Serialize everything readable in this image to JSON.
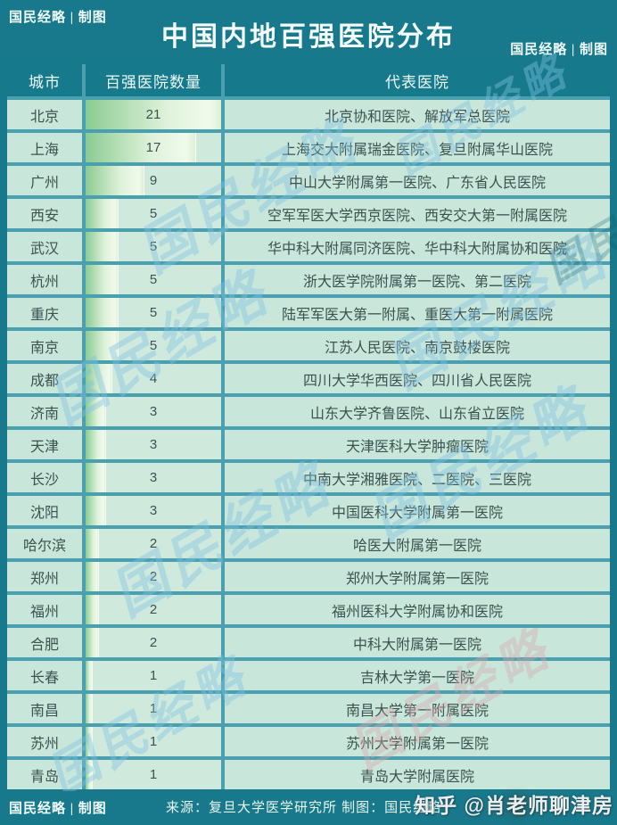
{
  "header": {
    "title": "中国内地百强医院分布",
    "badge_left": "国民经略 | 制图",
    "badge_right": "国民经略 | 制图"
  },
  "table": {
    "columns": [
      "城市",
      "百强医院数量",
      "代表医院"
    ],
    "max_value": 21,
    "rows": [
      {
        "city": "北京",
        "count": 21,
        "hospitals": "北京协和医院、解放军总医院"
      },
      {
        "city": "上海",
        "count": 17,
        "hospitals": "上海交大附属瑞金医院、复旦附属华山医院"
      },
      {
        "city": "广州",
        "count": 9,
        "hospitals": "中山大学附属第一医院、广东省人民医院"
      },
      {
        "city": "西安",
        "count": 5,
        "hospitals": "空军军医大学西京医院、西安交大第一附属医院"
      },
      {
        "city": "武汉",
        "count": 5,
        "hospitals": "华中科大附属同济医院、华中科大附属协和医院"
      },
      {
        "city": "杭州",
        "count": 5,
        "hospitals": "浙大医学院附属第一医院、第二医院"
      },
      {
        "city": "重庆",
        "count": 5,
        "hospitals": "陆军军医大第一附属、重医大第一附属医院"
      },
      {
        "city": "南京",
        "count": 5,
        "hospitals": "江苏人民医院、南京鼓楼医院"
      },
      {
        "city": "成都",
        "count": 4,
        "hospitals": "四川大学华西医院、四川省人民医院"
      },
      {
        "city": "济南",
        "count": 3,
        "hospitals": "山东大学齐鲁医院、山东省立医院"
      },
      {
        "city": "天津",
        "count": 3,
        "hospitals": "天津医科大学肿瘤医院"
      },
      {
        "city": "长沙",
        "count": 3,
        "hospitals": "中南大学湘雅医院、二医院、三医院"
      },
      {
        "city": "沈阳",
        "count": 3,
        "hospitals": "中国医科大学附属第一医院"
      },
      {
        "city": "哈尔滨",
        "count": 2,
        "hospitals": "哈医大附属第一医院"
      },
      {
        "city": "郑州",
        "count": 2,
        "hospitals": "郑州大学附属第一医院"
      },
      {
        "city": "福州",
        "count": 2,
        "hospitals": "福州医科大学附属协和医院"
      },
      {
        "city": "合肥",
        "count": 2,
        "hospitals": "中科大附属第一医院"
      },
      {
        "city": "长春",
        "count": 1,
        "hospitals": "吉林大学第一医院"
      },
      {
        "city": "南昌",
        "count": 1,
        "hospitals": "南昌大学第一附属医院"
      },
      {
        "city": "苏州",
        "count": 1,
        "hospitals": "苏州大学附属第一医院"
      },
      {
        "city": "青岛",
        "count": 1,
        "hospitals": "青岛大学附属医院"
      }
    ]
  },
  "footer": {
    "badge": "国民经略 | 制图",
    "source": "来源：复旦大学医学研究所  制图：国民经略"
  },
  "watermarks": {
    "brand_text": "国民经略",
    "zhihu": "知乎 @肖老师聊津房"
  },
  "colors": {
    "background_teal": "#17798b",
    "gap_teal": "#4aa0ae",
    "row_mint": "#c8e7da",
    "bar_green": "#8bcb93",
    "text_dark": "#3d5151",
    "text_white": "#f4fdfc",
    "watermark_blue": "#7ec2e2"
  },
  "chart_data": {
    "type": "bar",
    "title": "中国内地百强医院分布",
    "categories": [
      "北京",
      "上海",
      "广州",
      "西安",
      "武汉",
      "杭州",
      "重庆",
      "南京",
      "成都",
      "济南",
      "天津",
      "长沙",
      "沈阳",
      "哈尔滨",
      "郑州",
      "福州",
      "合肥",
      "长春",
      "南昌",
      "苏州",
      "青岛"
    ],
    "values": [
      21,
      17,
      9,
      5,
      5,
      5,
      5,
      5,
      4,
      3,
      3,
      3,
      3,
      2,
      2,
      2,
      2,
      1,
      1,
      1,
      1
    ],
    "annotations": [
      "北京协和医院、解放军总医院",
      "上海交大附属瑞金医院、复旦附属华山医院",
      "中山大学附属第一医院、广东省人民医院",
      "空军军医大学西京医院、西安交大第一附属医院",
      "华中科大附属同济医院、华中科大附属协和医院",
      "浙大医学院附属第一医院、第二医院",
      "陆军军医大第一附属、重医大第一附属医院",
      "江苏人民医院、南京鼓楼医院",
      "四川大学华西医院、四川省人民医院",
      "山东大学齐鲁医院、山东省立医院",
      "天津医科大学肿瘤医院",
      "中南大学湘雅医院、二医院、三医院",
      "中国医科大学附属第一医院",
      "哈医大附属第一医院",
      "郑州大学附属第一医院",
      "福州医科大学附属协和医院",
      "中科大附属第一医院",
      "吉林大学第一医院",
      "南昌大学第一附属医院",
      "苏州大学附属第一医院",
      "青岛大学附属医院"
    ],
    "xlabel": "百强医院数量",
    "ylabel": "城市",
    "xlim": [
      0,
      21
    ],
    "orientation": "horizontal",
    "legend": null,
    "grid": false
  }
}
